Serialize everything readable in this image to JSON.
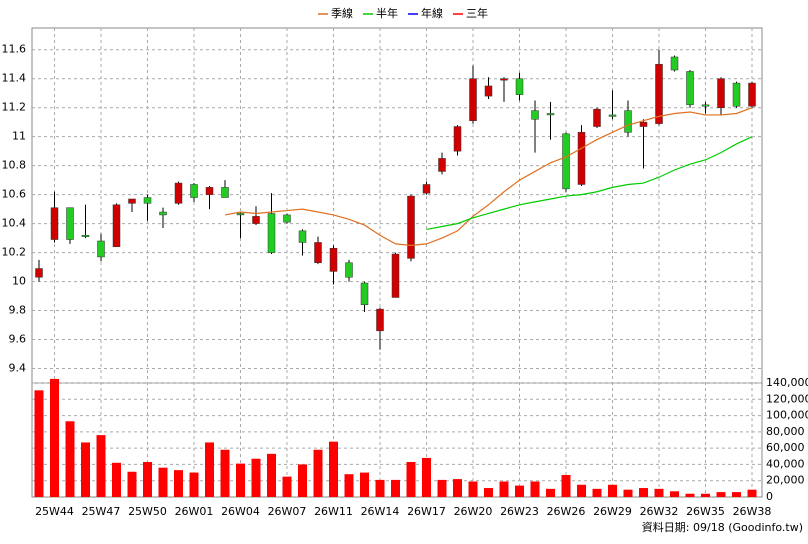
{
  "chart_data": [
    {
      "type": "candlestick",
      "series": [
        {
          "name": "季線",
          "color": "#e07020",
          "values": [
            null,
            null,
            null,
            null,
            null,
            null,
            null,
            null,
            null,
            null,
            null,
            null,
            10.46,
            10.48,
            10.47,
            10.48,
            10.49,
            10.5,
            10.48,
            10.46,
            10.43,
            10.39,
            10.32,
            10.26,
            10.25,
            10.26,
            10.3,
            10.35,
            10.45,
            10.53,
            10.62,
            10.7,
            10.76,
            10.82,
            10.86,
            10.92,
            10.98,
            11.03,
            11.08,
            11.11,
            11.14,
            11.16,
            11.17,
            11.15,
            11.15,
            11.16,
            11.2
          ]
        },
        {
          "name": "半年",
          "color": "#00cc00",
          "values": [
            null,
            null,
            null,
            null,
            null,
            null,
            null,
            null,
            null,
            null,
            null,
            null,
            null,
            null,
            null,
            null,
            null,
            null,
            null,
            null,
            null,
            null,
            null,
            null,
            null,
            10.36,
            10.38,
            10.4,
            10.44,
            10.47,
            10.5,
            10.53,
            10.55,
            10.57,
            10.59,
            10.6,
            10.62,
            10.65,
            10.67,
            10.68,
            10.72,
            10.77,
            10.81,
            10.84,
            10.89,
            10.95,
            11.0
          ]
        },
        {
          "name": "年線",
          "color": "#0000ff",
          "values": [
            null,
            null,
            null,
            null,
            null,
            null,
            null,
            null,
            null,
            null,
            null,
            null,
            null,
            null,
            null,
            null,
            null,
            null,
            null,
            null,
            null,
            null,
            null,
            null,
            null,
            null,
            null,
            null,
            null,
            null,
            null,
            null,
            null,
            null,
            null,
            null,
            null,
            null,
            null,
            null,
            null,
            null,
            null,
            null,
            null,
            null,
            null
          ]
        },
        {
          "name": "三年",
          "color": "#ff0000",
          "values": [
            null,
            null,
            null,
            null,
            null,
            null,
            null,
            null,
            null,
            null,
            null,
            null,
            null,
            null,
            null,
            null,
            null,
            null,
            null,
            null,
            null,
            null,
            null,
            null,
            null,
            null,
            null,
            null,
            null,
            null,
            null,
            null,
            null,
            null,
            null,
            null,
            null,
            null,
            null,
            null,
            null,
            null,
            null,
            null,
            null,
            null,
            null
          ]
        }
      ],
      "categories": [
        null,
        "25W44",
        null,
        null,
        "25W47",
        null,
        null,
        "25W50",
        null,
        null,
        "26W01",
        null,
        null,
        "26W04",
        null,
        null,
        "26W07",
        null,
        null,
        "26W11",
        null,
        null,
        "26W14",
        null,
        null,
        "26W17",
        null,
        null,
        "26W20",
        null,
        null,
        "26W23",
        null,
        null,
        "26W26",
        null,
        null,
        "26W29",
        null,
        null,
        "26W32",
        null,
        null,
        "26W35",
        null,
        null,
        "26W38"
      ],
      "open": [
        10.03,
        10.29,
        10.51,
        10.32,
        10.28,
        10.24,
        10.54,
        10.58,
        10.48,
        10.54,
        10.67,
        10.6,
        10.65,
        10.47,
        10.4,
        10.47,
        10.46,
        10.35,
        10.13,
        10.07,
        10.13,
        9.99,
        9.66,
        9.89,
        10.16,
        10.61,
        10.76,
        10.9,
        11.11,
        11.28,
        11.39,
        11.4,
        11.18,
        11.16,
        11.02,
        10.67,
        11.07,
        11.15,
        11.18,
        11.07,
        11.09,
        11.55,
        11.45,
        11.22,
        11.2,
        11.37,
        11.21
      ],
      "high": [
        10.15,
        10.62,
        10.51,
        10.53,
        10.33,
        10.54,
        10.57,
        10.6,
        10.51,
        10.69,
        10.68,
        10.66,
        10.7,
        10.48,
        10.52,
        10.61,
        10.47,
        10.36,
        10.31,
        10.25,
        10.15,
        10.0,
        9.82,
        10.2,
        10.6,
        10.69,
        10.89,
        11.08,
        11.49,
        11.41,
        11.41,
        11.44,
        11.25,
        11.24,
        11.03,
        11.08,
        11.2,
        11.32,
        11.25,
        11.12,
        11.6,
        11.56,
        11.46,
        11.24,
        11.41,
        11.38,
        11.38
      ],
      "low": [
        10.0,
        10.27,
        10.26,
        10.3,
        10.14,
        10.24,
        10.48,
        10.42,
        10.37,
        10.53,
        10.55,
        10.5,
        10.58,
        10.3,
        10.39,
        10.19,
        10.4,
        10.18,
        10.12,
        9.98,
        10.0,
        9.79,
        9.53,
        9.89,
        10.14,
        10.6,
        10.74,
        10.87,
        11.09,
        11.26,
        11.24,
        11.25,
        10.89,
        10.98,
        10.62,
        10.66,
        11.06,
        11.12,
        11.0,
        10.78,
        11.08,
        11.45,
        11.2,
        11.16,
        11.15,
        11.2,
        11.2
      ],
      "close": [
        10.09,
        10.51,
        10.29,
        10.31,
        10.17,
        10.53,
        10.57,
        10.54,
        10.46,
        10.68,
        10.58,
        10.65,
        10.58,
        10.46,
        10.45,
        10.2,
        10.41,
        10.27,
        10.27,
        10.23,
        10.03,
        9.84,
        9.81,
        10.19,
        10.59,
        10.67,
        10.85,
        11.07,
        11.4,
        11.35,
        11.4,
        11.29,
        11.12,
        11.15,
        10.64,
        11.03,
        11.19,
        11.14,
        11.03,
        11.1,
        11.5,
        11.46,
        11.22,
        11.21,
        11.4,
        11.21,
        11.37
      ],
      "up_color": "#d00000",
      "down_color": "#22cc22",
      "ylim": [
        9.3,
        11.75
      ],
      "yticks": [
        9.4,
        9.6,
        9.8,
        10,
        10.2,
        10.4,
        10.6,
        10.8,
        11,
        11.2,
        11.4,
        11.6
      ],
      "grid": true
    },
    {
      "type": "bar",
      "color": "#ff0000",
      "values": [
        131000,
        145000,
        93000,
        67000,
        76000,
        42000,
        31000,
        43000,
        36000,
        33000,
        30000,
        67000,
        58000,
        41000,
        47000,
        53000,
        25000,
        40000,
        58000,
        68000,
        28000,
        30000,
        21000,
        21000,
        43000,
        48000,
        21000,
        22000,
        19000,
        11000,
        19000,
        14000,
        19000,
        10000,
        27000,
        15000,
        10000,
        15000,
        9000,
        11000,
        10000,
        7000,
        4000,
        4000,
        6000,
        6000,
        9000
      ],
      "ylim": [
        0,
        140000
      ],
      "yticks": [
        0,
        {
          "value": 20000,
          "label": "20,000"
        },
        {
          "value": 40000,
          "label": "40,000"
        },
        {
          "value": 60000,
          "label": "60,000"
        },
        {
          "value": 80000,
          "label": "80,000"
        },
        {
          "value": 100000,
          "label": "100,000"
        },
        {
          "value": 120000,
          "label": "120,000"
        },
        {
          "value": 140000,
          "label": "140,000"
        }
      ],
      "grid": true,
      "footer": "資料日期: 09/18  (Goodinfo.tw)"
    }
  ]
}
